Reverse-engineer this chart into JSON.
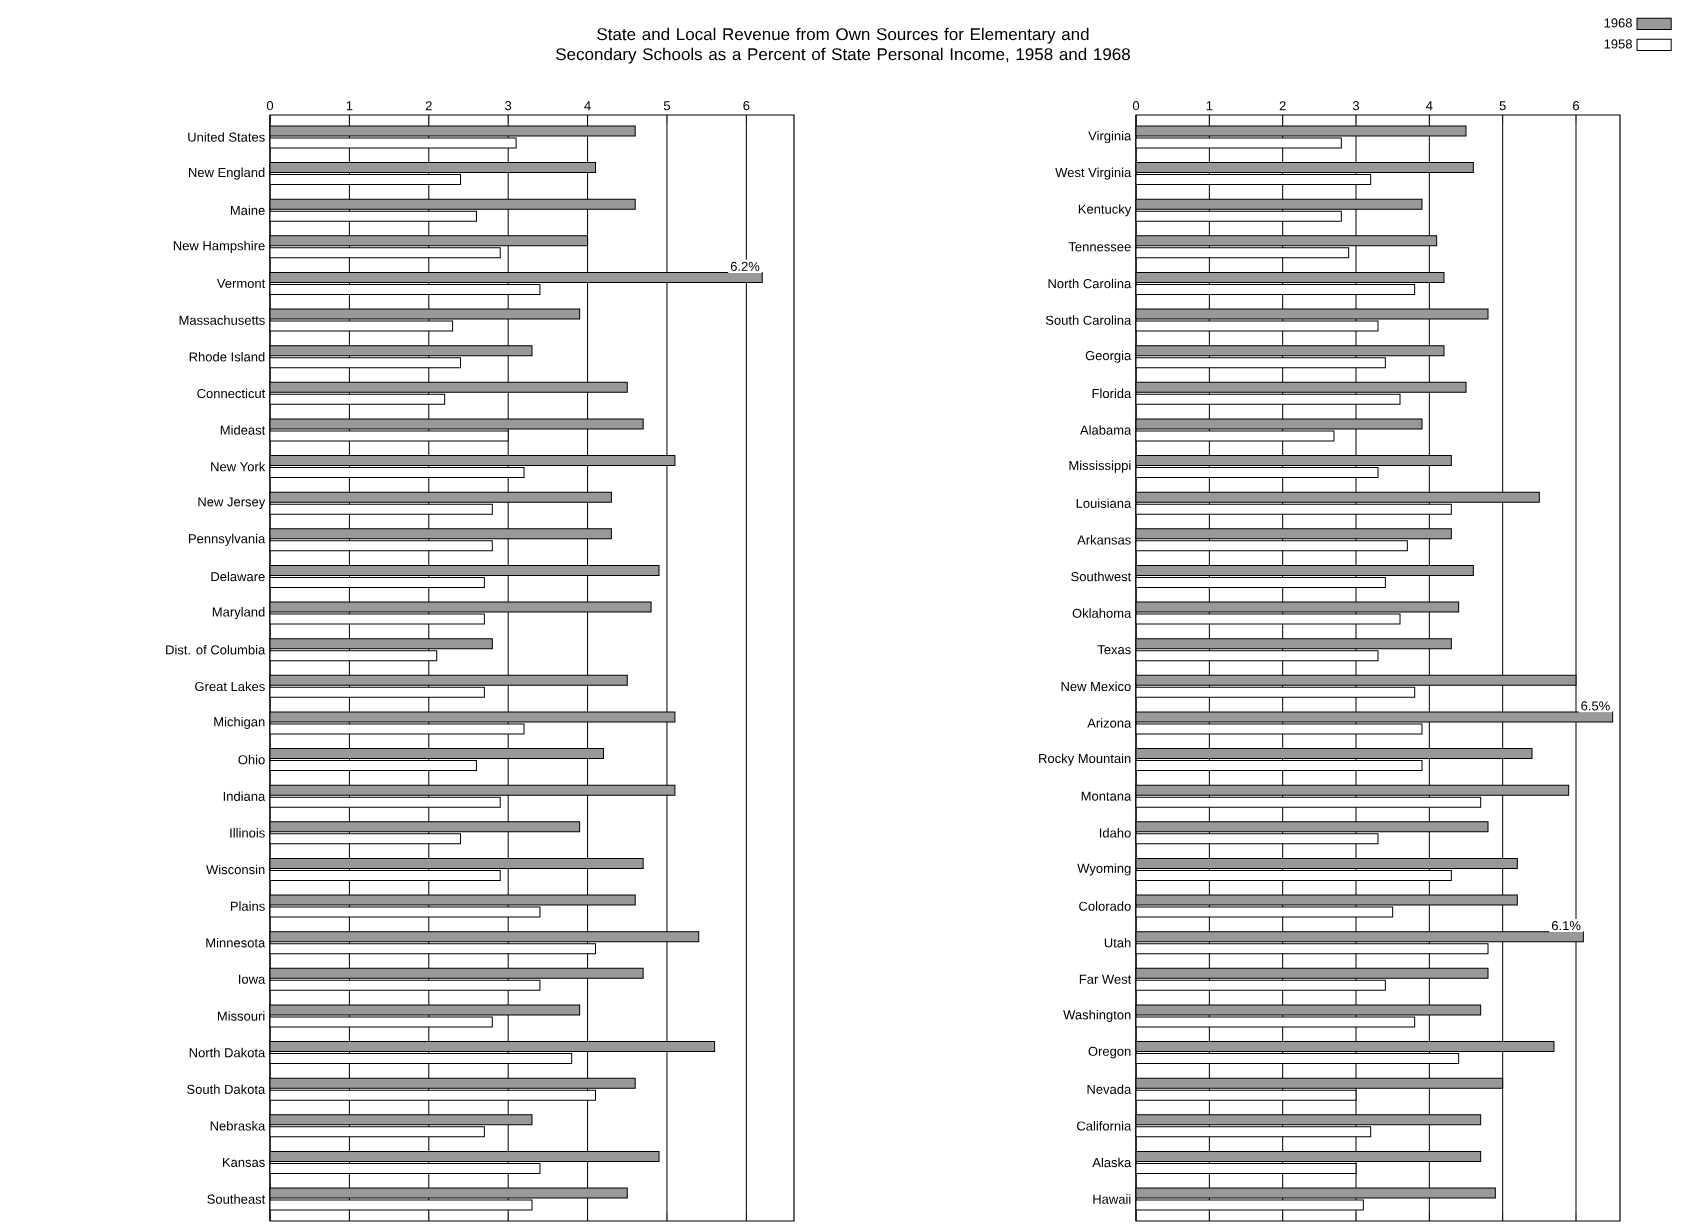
{
  "chart_data": [
    {
      "type": "bar",
      "orientation": "horizontal",
      "title": "State and Local Revenue from Own Sources for Elementary and Secondary Schools as a Percent of State Personal Income, 1958 and 1968",
      "categories": [
        "United States",
        "New England",
        "Maine",
        "New Hampshire",
        "Vermont",
        "Massachusetts",
        "Rhode Island",
        "Connecticut",
        "Mideast",
        "New York",
        "New Jersey",
        "Pennsylvania",
        "Delaware",
        "Maryland",
        "Dist. of Columbia",
        "Great Lakes",
        "Michigan",
        "Ohio",
        "Indiana",
        "Illinois",
        "Wisconsin",
        "Plains",
        "Minnesota",
        "Iowa",
        "Missouri",
        "North Dakota",
        "South Dakota",
        "Nebraska",
        "Kansas",
        "Southeast"
      ],
      "series": [
        {
          "color": "#999999",
          "values": [
            4.6,
            4.1,
            4.6,
            4.0,
            6.2,
            3.9,
            3.3,
            4.5,
            4.7,
            5.1,
            4.3,
            4.3,
            4.9,
            4.8,
            2.8,
            4.5,
            5.1,
            4.2,
            5.1,
            3.9,
            4.7,
            4.6,
            5.4,
            4.7,
            3.9,
            5.6,
            4.6,
            3.3,
            4.9,
            4.5
          ],
          "value_labels": [
            null,
            null,
            null,
            null,
            "6.2%",
            null,
            null,
            null,
            null,
            null,
            null,
            null,
            null,
            null,
            null,
            null,
            null,
            null,
            null,
            null,
            null,
            null,
            null,
            null,
            null,
            null,
            null,
            null,
            null,
            null
          ]
        },
        {
          "color": "#ffffff",
          "values": [
            3.1,
            2.4,
            2.6,
            2.9,
            3.4,
            2.3,
            2.4,
            2.2,
            3.0,
            3.2,
            2.8,
            2.8,
            2.7,
            2.7,
            2.1,
            2.7,
            3.2,
            2.6,
            2.9,
            2.4,
            2.9,
            3.4,
            4.1,
            3.4,
            2.8,
            3.8,
            4.1,
            2.7,
            3.4,
            3.3
          ]
        }
      ],
      "xlim": [
        0,
        6.6
      ],
      "xticks": [
        0,
        1,
        2,
        3,
        4,
        5,
        6
      ],
      "grid": "x"
    },
    {
      "type": "bar",
      "orientation": "horizontal",
      "categories": [
        "Virginia",
        "West Virginia",
        "Kentucky",
        "Tennessee",
        "North Carolina",
        "South Carolina",
        "Georgia",
        "Florida",
        "Alabama",
        "Mississippi",
        "Louisiana",
        "Arkansas",
        "Southwest",
        "Oklahoma",
        "Texas",
        "New Mexico",
        "Arizona",
        "Rocky Mountain",
        "Montana",
        "Idaho",
        "Wyoming",
        "Colorado",
        "Utah",
        "Far West",
        "Washington",
        "Oregon",
        "Nevada",
        "California",
        "Alaska",
        "Hawaii"
      ],
      "series": [
        {
          "name": "1968",
          "color": "#999999",
          "values": [
            4.5,
            4.6,
            3.9,
            4.1,
            4.2,
            4.8,
            4.2,
            4.5,
            3.9,
            4.3,
            5.5,
            4.3,
            4.6,
            4.4,
            4.3,
            6.0,
            6.5,
            5.4,
            5.9,
            4.8,
            5.2,
            5.2,
            6.1,
            4.8,
            4.7,
            5.7,
            5.0,
            4.7,
            4.7,
            4.9
          ],
          "value_labels": [
            null,
            null,
            null,
            null,
            null,
            null,
            null,
            null,
            null,
            null,
            null,
            null,
            null,
            null,
            null,
            null,
            "6.5%",
            null,
            null,
            null,
            null,
            null,
            "6.1%",
            null,
            null,
            null,
            null,
            null,
            null,
            null
          ]
        },
        {
          "name": "1958",
          "color": "#ffffff",
          "values": [
            2.8,
            3.2,
            2.8,
            2.9,
            3.8,
            3.3,
            3.4,
            3.6,
            2.7,
            3.3,
            4.3,
            3.7,
            3.4,
            3.6,
            3.3,
            3.8,
            3.9,
            3.9,
            4.7,
            3.3,
            4.3,
            3.5,
            4.8,
            3.4,
            3.8,
            4.4,
            3.0,
            3.2,
            3.0,
            3.1
          ]
        }
      ],
      "xlim": [
        0,
        6.6
      ],
      "xticks": [
        0,
        1,
        2,
        3,
        4,
        5,
        6
      ],
      "grid": "x",
      "legend": "top right"
    }
  ]
}
